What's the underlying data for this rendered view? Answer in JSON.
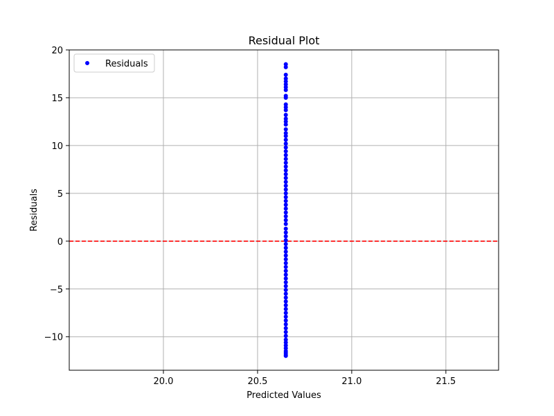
{
  "chart_data": {
    "type": "scatter",
    "title": "Residual Plot",
    "xlabel": "Predicted Values",
    "ylabel": "Residuals",
    "xlim": [
      19.5,
      21.78
    ],
    "ylim": [
      -13.5,
      20.0
    ],
    "x_ticks": [
      20.0,
      20.5,
      21.0,
      21.5
    ],
    "x_tick_labels": [
      "20.0",
      "20.5",
      "21.0",
      "21.5"
    ],
    "y_ticks": [
      -10,
      -5,
      0,
      5,
      10,
      15,
      20
    ],
    "y_tick_labels": [
      "−10",
      "−5",
      "0",
      "5",
      "10",
      "15",
      "20"
    ],
    "grid": true,
    "legend": {
      "position": "top-left",
      "entries": [
        "Residuals"
      ]
    },
    "series": [
      {
        "name": "Residuals",
        "color": "#0000ff",
        "marker": "circle",
        "x": [
          20.65,
          20.65,
          20.65,
          20.65,
          20.65,
          20.65,
          20.65,
          20.65,
          20.65,
          20.65,
          20.65,
          20.65,
          20.65,
          20.65,
          20.65,
          20.65,
          20.65,
          20.65,
          20.65,
          20.65,
          20.65,
          20.65,
          20.65,
          20.65,
          20.65,
          20.65,
          20.65,
          20.65,
          20.65,
          20.65,
          20.65,
          20.65,
          20.65,
          20.65,
          20.65,
          20.65,
          20.65,
          20.65,
          20.65,
          20.65,
          20.65,
          20.65,
          20.65,
          20.65,
          20.65,
          20.65,
          20.65,
          20.65,
          20.65,
          20.65,
          20.65,
          20.65,
          20.65,
          20.65,
          20.65,
          20.65,
          20.65,
          20.65,
          20.65,
          20.65,
          20.65,
          20.65,
          20.65,
          20.65,
          20.65,
          20.65,
          20.65,
          20.65,
          20.65,
          20.65,
          20.65,
          20.65,
          20.65,
          20.65,
          20.65,
          20.65,
          20.65,
          20.65,
          20.65,
          20.65
        ],
        "y": [
          18.5,
          18.2,
          17.4,
          17.0,
          16.7,
          16.4,
          16.1,
          15.8,
          15.2,
          15.0,
          14.3,
          14.0,
          13.7,
          13.2,
          12.8,
          12.5,
          12.2,
          11.7,
          11.3,
          11.0,
          10.6,
          10.2,
          9.8,
          9.4,
          9.0,
          8.6,
          8.2,
          7.8,
          7.4,
          7.0,
          6.6,
          6.2,
          5.8,
          5.4,
          5.0,
          4.6,
          4.2,
          3.8,
          3.4,
          3.0,
          2.6,
          2.2,
          1.8,
          1.3,
          0.9,
          0.5,
          0.1,
          -0.3,
          -0.7,
          -1.1,
          -1.5,
          -1.9,
          -2.3,
          -2.7,
          -3.1,
          -3.5,
          -3.9,
          -4.3,
          -4.7,
          -5.1,
          -5.5,
          -5.9,
          -6.3,
          -6.7,
          -7.1,
          -7.5,
          -7.9,
          -8.3,
          -8.7,
          -9.1,
          -9.5,
          -9.9,
          -10.3,
          -10.6,
          -10.9,
          -11.2,
          -11.5,
          -11.7,
          -11.9,
          -12.0
        ]
      }
    ],
    "reference_line": {
      "y": 0,
      "color": "#ff0000",
      "style": "dashed"
    }
  }
}
